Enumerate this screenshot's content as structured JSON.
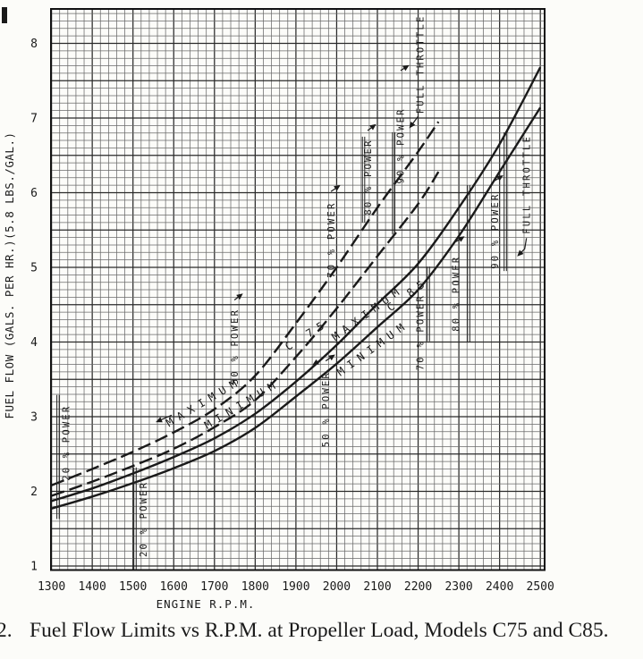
{
  "page": {
    "background": "#fcfcf9",
    "ink": "#1a1a1a",
    "grid_minor_color": "#6a6a6a",
    "grid_major_color": "#2a2a2a"
  },
  "caption": {
    "number": "2.",
    "text": "Fuel Flow Limits vs R.P.M. at Propeller Load, Models C75 and C85."
  },
  "chart_data": {
    "type": "line",
    "title": "Fuel Flow Limits vs R.P.M. at Propeller Load, Models C75 and C85",
    "xlabel": "ENGINE   R.P.M.",
    "ylabel": "FUEL FLOW  (GALS. PER HR.)(5.8 LBS./GAL.)",
    "xlim": [
      1300,
      2510
    ],
    "ylim": [
      0.95,
      8.45
    ],
    "x_ticks": [
      1300,
      1400,
      1500,
      1600,
      1700,
      1800,
      1900,
      2000,
      2100,
      2200,
      2300,
      2400,
      2500
    ],
    "y_ticks": [
      1,
      2,
      3,
      4,
      5,
      6,
      7,
      8
    ],
    "x_minor_step": 20,
    "x_major_step": 100,
    "y_minor_step": 0.1,
    "y_major_step": 0.5,
    "grid": "graph-paper",
    "legend_position": "none",
    "series": [
      {
        "name": "MAXIMUM C-75",
        "style": "dashed",
        "rpm": [
          1300,
          1400,
          1500,
          1600,
          1700,
          1800,
          1900,
          2000,
          2100,
          2200,
          2250
        ],
        "fuel": [
          2.08,
          2.3,
          2.53,
          2.79,
          3.1,
          3.55,
          4.25,
          5.0,
          5.8,
          6.55,
          6.95
        ]
      },
      {
        "name": "MINIMUM C-75",
        "style": "dashed",
        "rpm": [
          1300,
          1400,
          1500,
          1600,
          1700,
          1800,
          1900,
          2000,
          2100,
          2200,
          2250
        ],
        "fuel": [
          1.94,
          2.13,
          2.34,
          2.57,
          2.86,
          3.22,
          3.8,
          4.45,
          5.15,
          5.85,
          6.28
        ]
      },
      {
        "name": "MAXIMUM C-85",
        "style": "solid",
        "rpm": [
          1300,
          1400,
          1500,
          1600,
          1700,
          1800,
          1900,
          2000,
          2100,
          2200,
          2300,
          2400,
          2500
        ],
        "fuel": [
          1.87,
          2.04,
          2.24,
          2.46,
          2.71,
          3.04,
          3.47,
          3.96,
          4.51,
          5.05,
          5.8,
          6.65,
          7.68
        ]
      },
      {
        "name": "MINIMUM C-85",
        "style": "solid",
        "rpm": [
          1300,
          1400,
          1500,
          1600,
          1700,
          1800,
          1900,
          2000,
          2100,
          2200,
          2300,
          2400,
          2500
        ],
        "fuel": [
          1.77,
          1.93,
          2.11,
          2.31,
          2.54,
          2.85,
          3.27,
          3.71,
          4.2,
          4.7,
          5.42,
          6.28,
          7.14
        ]
      }
    ],
    "power_markers": [
      {
        "id": "c75-20",
        "engine": "C-75",
        "label": "20 % POWER",
        "text_rpm": 1336,
        "text_fuel": 2.65,
        "line_rpm": 1316,
        "line_fuel": [
          1.63,
          3.29
        ]
      },
      {
        "id": "c75-50",
        "engine": "C-75",
        "label": "50 % POWER",
        "text_rpm": 1749,
        "text_fuel": 3.94,
        "leader": [
          [
            0,
            -52
          ],
          [
            8,
            -58
          ]
        ]
      },
      {
        "id": "c75-70",
        "engine": "C-75",
        "label": "70 % POWER",
        "text_rpm": 1986,
        "text_fuel": 5.37,
        "leader": [
          [
            0,
            -54
          ],
          [
            9,
            -60
          ]
        ]
      },
      {
        "id": "c75-80",
        "engine": "C-75",
        "label": "80 % POWER",
        "text_rpm": 2076,
        "text_fuel": 6.21,
        "line_rpm": 2066,
        "line_fuel": [
          5.6,
          6.75
        ],
        "leader": [
          [
            0,
            -52
          ],
          [
            8,
            -58
          ]
        ]
      },
      {
        "id": "c75-90",
        "engine": "C-75",
        "label": "90 % POWER",
        "text_rpm": 2157,
        "text_fuel": 6.63,
        "line_rpm": 2140,
        "line_fuel": [
          5.44,
          6.81
        ],
        "leader": [
          [
            0,
            -84
          ],
          [
            8,
            -89
          ]
        ]
      },
      {
        "id": "c75-ft",
        "engine": "C-75",
        "label": "FULL THROTTLE",
        "text_rpm": 2205,
        "text_fuel": 7.72,
        "leader": [
          [
            -2,
            58
          ],
          [
            -11,
            70
          ]
        ]
      },
      {
        "id": "c85-20",
        "engine": "C-85",
        "label": "20 % POWER",
        "text_rpm": 1525,
        "text_fuel": 1.63,
        "line_rpm": 1505,
        "line_fuel": [
          0.95,
          2.32
        ]
      },
      {
        "id": "c85-50",
        "engine": "C-85",
        "label": "50 % POWER",
        "text_rpm": 1973,
        "text_fuel": 3.1,
        "leader": [
          [
            0,
            -54
          ],
          [
            9,
            -60
          ]
        ]
      },
      {
        "id": "c85-70",
        "engine": "C-85",
        "label": "70 % POWER",
        "text_rpm": 2205,
        "text_fuel": 4.13,
        "line_rpm": 2225,
        "line_fuel": [
          4.01,
          5.01
        ]
      },
      {
        "id": "c85-80",
        "engine": "C-85",
        "label": "80 % POWER",
        "text_rpm": 2293,
        "text_fuel": 4.65,
        "line_rpm": 2324,
        "line_fuel": [
          4.0,
          6.1
        ],
        "leader": [
          [
            0,
            -58
          ],
          [
            8,
            -63
          ]
        ]
      },
      {
        "id": "c85-90",
        "engine": "C-85",
        "label": "90 % POWER",
        "text_rpm": 2388,
        "text_fuel": 5.49,
        "line_rpm": 2414,
        "line_fuel": [
          4.95,
          6.81
        ],
        "leader": [
          [
            0,
            -56
          ],
          [
            8,
            -61
          ]
        ]
      },
      {
        "id": "c85-ft",
        "engine": "C-85",
        "label": "FULL THROTTLE",
        "text_rpm": 2466,
        "text_fuel": 6.11,
        "leader": [
          [
            0,
            60
          ],
          [
            -2,
            72
          ],
          [
            -9,
            79
          ]
        ]
      }
    ],
    "curve_labels": [
      {
        "id": "c75-max-label",
        "text": "MAXIMUM",
        "rpm": 1674,
        "fuel": 3.2,
        "angle": -31,
        "leader": [
          [
            -36,
            15
          ],
          [
            -52,
            22
          ]
        ]
      },
      {
        "id": "c75-min-label",
        "text": "MINIMUM",
        "rpm": 1768,
        "fuel": 3.17,
        "angle": -31
      },
      {
        "id": "c75-name-label",
        "text": "C 75",
        "rpm": 1927,
        "fuel": 4.1,
        "angle": -32
      },
      {
        "id": "c85-max-label",
        "text": "MAXIMUM",
        "rpm": 2076,
        "fuel": 4.39,
        "angle": -36
      },
      {
        "id": "c85-name-label",
        "text": "C 85",
        "rpm": 2175,
        "fuel": 4.64,
        "angle": -36
      },
      {
        "id": "c85-min-label",
        "text": "MINIMUM",
        "rpm": 2089,
        "fuel": 3.92,
        "angle": -36,
        "leader": [
          [
            -56,
            12
          ],
          [
            -66,
            18
          ]
        ]
      }
    ]
  }
}
